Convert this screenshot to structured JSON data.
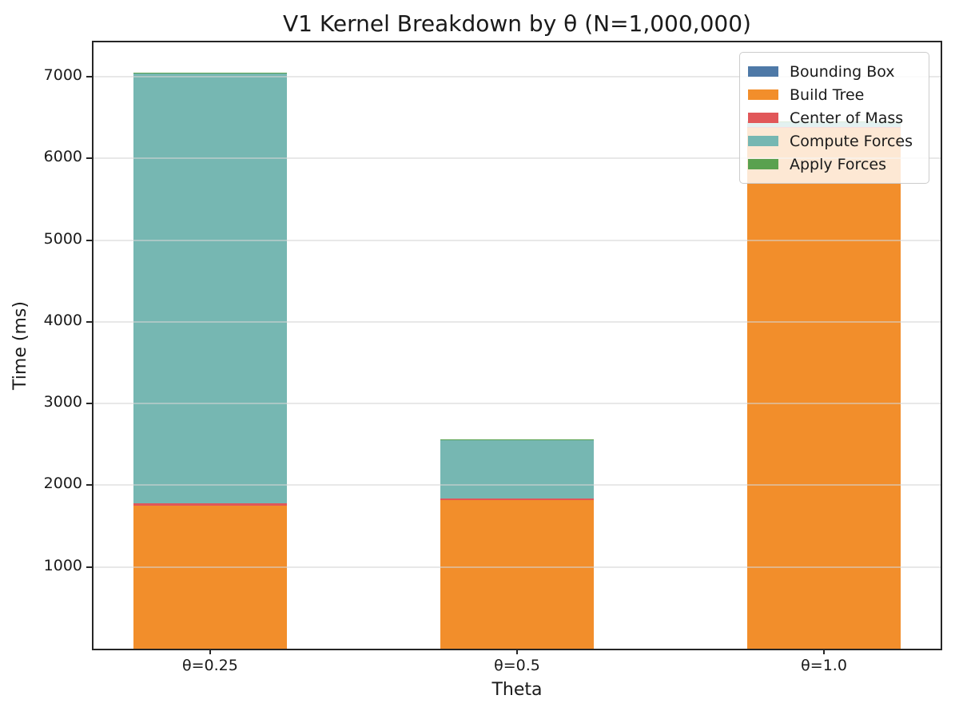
{
  "figure": {
    "background": "#ffffff",
    "text_color": "#1a1a1a",
    "spine_color": "#262626",
    "gridline_color": "#e9e9e9",
    "legend_border_color": "#cccccc"
  },
  "chart_data": {
    "type": "bar",
    "stacked": true,
    "title": "V1 Kernel Breakdown by θ (N=1,000,000)",
    "xlabel": "Theta",
    "ylabel": "Time (ms)",
    "categories": [
      "θ=0.25",
      "θ=0.5",
      "θ=1.0"
    ],
    "series": [
      {
        "name": "Bounding Box",
        "color": "#4e79a7",
        "values": [
          4,
          4,
          4
        ]
      },
      {
        "name": "Build Tree",
        "color": "#f28e2b",
        "values": [
          1748,
          1815,
          6368
        ]
      },
      {
        "name": "Center of Mass",
        "color": "#e15759",
        "values": [
          24,
          22,
          10
        ]
      },
      {
        "name": "Compute Forces",
        "color": "#76b7b2",
        "values": [
          5264,
          716,
          65
        ]
      },
      {
        "name": "Apply Forces",
        "color": "#59a14f",
        "values": [
          4,
          4,
          4
        ]
      }
    ],
    "totals_ms": [
      7044,
      2561,
      6451
    ],
    "ylim": [
      0,
      7420
    ],
    "yticks": [
      1000,
      2000,
      3000,
      4000,
      5000,
      6000,
      7000
    ],
    "xlim": [
      -0.38,
      2.38
    ],
    "bar_width": 0.5,
    "grid": "horizontal",
    "grid_over_bars": true,
    "legend_position": "upper right"
  }
}
